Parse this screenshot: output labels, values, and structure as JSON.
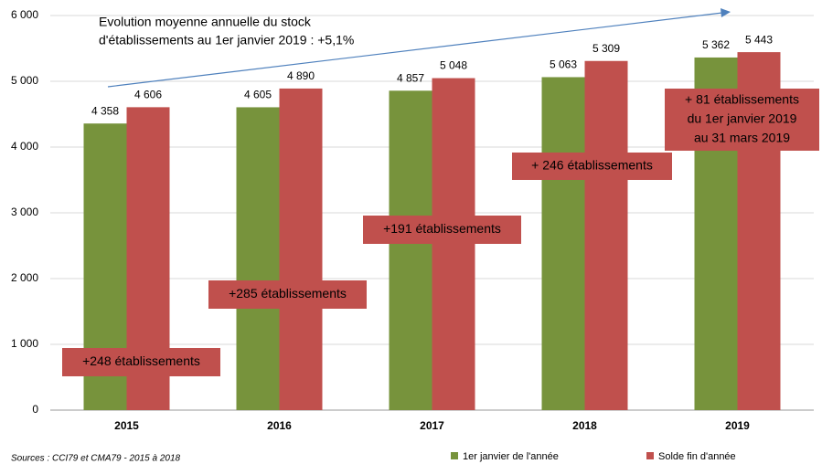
{
  "chart_data": {
    "type": "bar",
    "categories": [
      "2015",
      "2016",
      "2017",
      "2018",
      "2019"
    ],
    "series": [
      {
        "name": "1er janvier de l'année",
        "color": "#77933c",
        "values": [
          4358,
          4605,
          4857,
          5063,
          5362
        ],
        "value_labels": [
          "4 358",
          "4 605",
          "4 857",
          "5 063",
          "5 362"
        ]
      },
      {
        "name": "Solde fin d'année",
        "color": "#c0504d",
        "values": [
          4606,
          4890,
          5048,
          5309,
          5443
        ],
        "value_labels": [
          "4 606",
          "4 890",
          "5 048",
          "5 309",
          "5 443"
        ]
      }
    ],
    "ylim": [
      0,
      6000
    ],
    "yticks": [
      0,
      {
        "value": 1000,
        "label": "1 000"
      },
      {
        "value": 2000,
        "label": "2 000"
      },
      {
        "value": 3000,
        "label": "3 000"
      },
      {
        "value": 4000,
        "label": "4 000"
      },
      {
        "value": 5000,
        "label": "5 000"
      },
      {
        "value": 6000,
        "label": "6 000"
      }
    ],
    "grid": true,
    "trend_annotation": {
      "lines": [
        "Evolution moyenne annuelle du stock",
        "d'établissements au 1er janvier 2019 : +5,1%"
      ],
      "color": "#4f81bd"
    },
    "box_annotations": [
      {
        "lines": [
          "+248 établissements"
        ]
      },
      {
        "lines": [
          "+285 établissements"
        ]
      },
      {
        "lines": [
          "+191 établissements"
        ]
      },
      {
        "lines": [
          "+ 246 établissements"
        ]
      },
      {
        "lines": [
          "+ 81 établissements",
          "du 1er janvier 2019",
          "au 31 mars 2019"
        ]
      }
    ],
    "source": "Sources : CCI79 et CMA79 - 2015 à 2018",
    "legend": "bottom"
  }
}
